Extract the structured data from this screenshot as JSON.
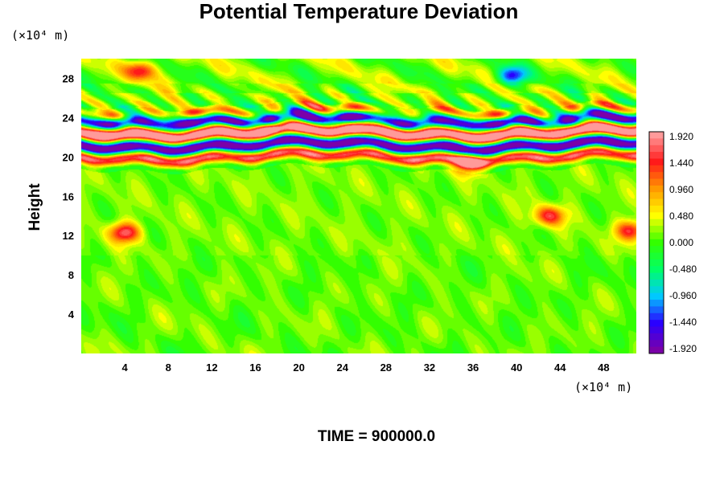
{
  "chart_data": {
    "type": "heatmap",
    "title": "Potential Temperature Deviation",
    "ylabel": "Height",
    "y_unit": "(×10⁴ m)",
    "x_unit": "(×10⁴ m)",
    "xlabel": "",
    "xlim": [
      0,
      51
    ],
    "ylim": [
      0,
      30
    ],
    "x_ticks": [
      4,
      8,
      12,
      16,
      20,
      24,
      28,
      32,
      36,
      40,
      44,
      48
    ],
    "y_ticks": [
      4,
      8,
      12,
      16,
      20,
      24,
      28
    ],
    "colorbar": {
      "range": [
        -1.92,
        1.92
      ],
      "ticks": [
        "1.920",
        "1.440",
        "0.960",
        "0.480",
        "0.000",
        "-0.480",
        "-0.960",
        "-1.440",
        "-1.920"
      ],
      "colormap": "rainbow",
      "colors": [
        "#7a00a8",
        "#2a00ff",
        "#00c8ff",
        "#00ff66",
        "#33ff00",
        "#ffff00",
        "#ff9900",
        "#ff1a1a",
        "#ff9a9a"
      ]
    },
    "background_value": 0.15,
    "features": [
      {
        "kind": "band",
        "description_value": "alternating strong positive/negative layers",
        "y_center": 22.0,
        "amplitude": 2.2
      },
      {
        "kind": "blob",
        "x": 5.5,
        "y": 28.8,
        "value": 1.3
      },
      {
        "kind": "blob",
        "x": 39.5,
        "y": 28.2,
        "value": -1.6
      },
      {
        "kind": "blob",
        "x": 4.0,
        "y": 12.3,
        "value": 1.5
      },
      {
        "kind": "blob",
        "x": 43.0,
        "y": 14.0,
        "value": 1.3
      },
      {
        "kind": "blob",
        "x": 35.5,
        "y": 19.3,
        "value": 1.4
      },
      {
        "kind": "blob",
        "x": 50.5,
        "y": 12.5,
        "value": 1.3
      }
    ],
    "annotation": "TIME = 900000.0"
  }
}
